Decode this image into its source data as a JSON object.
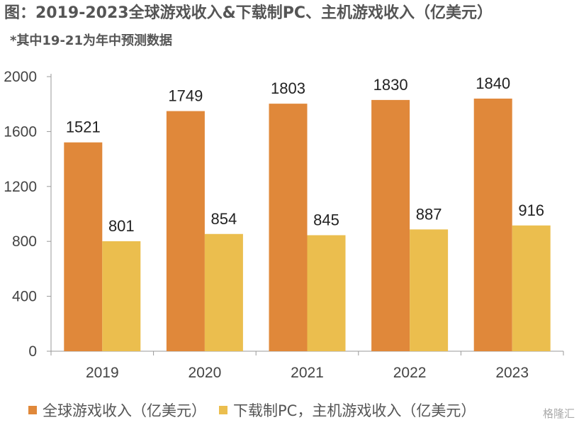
{
  "header": {
    "title": "图：2019-2023全球游戏收入&下载制PC、主机游戏收入（亿美元）",
    "subtitle": "*其中19-21为年中预测数据"
  },
  "watermark": "格隆汇",
  "chart_data": {
    "type": "bar",
    "categories": [
      "2019",
      "2020",
      "2021",
      "2022",
      "2023"
    ],
    "series": [
      {
        "name": "全球游戏收入（亿美元）",
        "values": [
          1521,
          1749,
          1803,
          1830,
          1840
        ],
        "color": "#E0883A"
      },
      {
        "name": "下载制PC，主机游戏收入（亿美元）",
        "values": [
          801,
          854,
          845,
          887,
          916
        ],
        "color": "#EBBE4E"
      }
    ],
    "ylim": [
      0,
      2000
    ],
    "yticks": [
      "0",
      "400",
      "800",
      "1200",
      "1600",
      "2000"
    ],
    "grid": false,
    "legend": "bottom"
  }
}
